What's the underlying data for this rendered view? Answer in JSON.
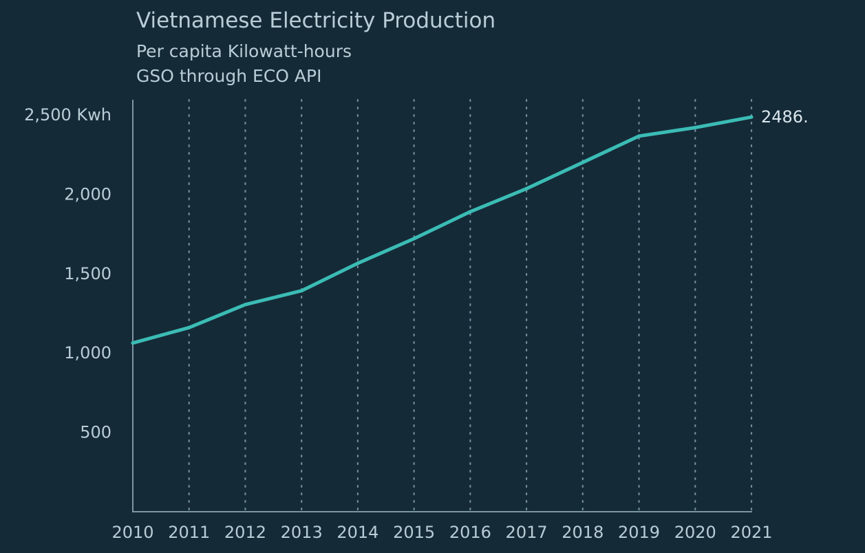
{
  "chart_data": {
    "type": "line",
    "title": "Vietnamese Electricity Production",
    "subtitle": "Per capita Kilowatt-hours",
    "source": "GSO through ECO API",
    "xlabel": "",
    "ylabel": "",
    "x": [
      2010,
      2011,
      2012,
      2013,
      2014,
      2015,
      2016,
      2017,
      2018,
      2019,
      2020,
      2021
    ],
    "series": [
      {
        "values": [
          1063,
          1160,
          1305,
          1392,
          1565,
          1720,
          1890,
          2035,
          2200,
          2366,
          2420,
          2486
        ],
        "color": "#3bbcb5"
      }
    ],
    "xlim": [
      2010,
      2021
    ],
    "ylim": [
      0,
      2500
    ],
    "y_ticks": [
      500,
      1000,
      1500,
      2000,
      2500
    ],
    "y_tick_labels": [
      "500",
      "1,000",
      "1,500",
      "2,000",
      "2,500 Kwh"
    ],
    "x_tick_labels": [
      "2010",
      "2011",
      "2012",
      "2013",
      "2014",
      "2015",
      "2016",
      "2017",
      "2018",
      "2019",
      "2020",
      "2021"
    ],
    "end_label": "2486.",
    "grid": "vertical-dotted"
  }
}
